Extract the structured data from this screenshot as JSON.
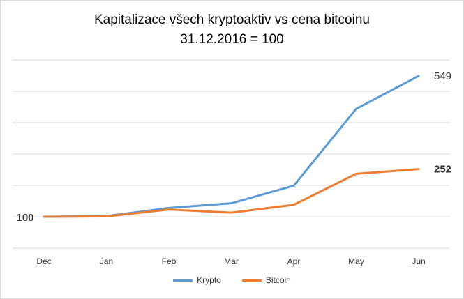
{
  "chart_data": {
    "type": "line",
    "title": "Kapitalizace všech kryptoaktiv vs cena bitcoinu",
    "subtitle": "31.12.2016 = 100",
    "categories": [
      "Dec",
      "Jan",
      "Feb",
      "Mar",
      "Apr",
      "May",
      "Jun"
    ],
    "series": [
      {
        "name": "Krypto",
        "color": "#5b9bd5",
        "values": [
          100,
          102,
          128,
          143,
          199,
          444,
          549
        ]
      },
      {
        "name": "Bitcoin",
        "color": "#ed7d31",
        "values": [
          100,
          101,
          123,
          113,
          138,
          237,
          252
        ]
      }
    ],
    "ylim": [
      0,
      600
    ],
    "grid": true,
    "legend": "bottom",
    "annotations": {
      "start": "100",
      "krypto_end": "549",
      "bitcoin_end": "252"
    }
  }
}
